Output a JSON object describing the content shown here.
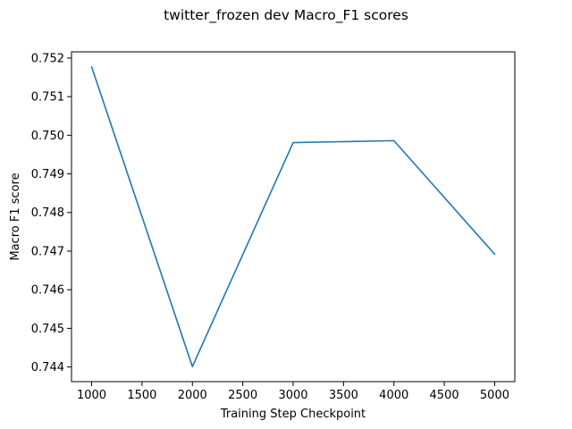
{
  "chart_data": {
    "type": "line",
    "title": "twitter_frozen dev Macro_F1 scores",
    "xlabel": "Training Step Checkpoint",
    "ylabel": "Macro F1 score",
    "x": [
      1000,
      2000,
      3000,
      4000,
      5000
    ],
    "series": [
      {
        "values": [
          0.75177,
          0.74401,
          0.74981,
          0.74986,
          0.74692
        ]
      }
    ],
    "xticks": [
      1000,
      1500,
      2000,
      2500,
      3000,
      3500,
      4000,
      4500,
      5000
    ],
    "xtick_labels": [
      "1000",
      "1500",
      "2000",
      "2500",
      "3000",
      "3500",
      "4000",
      "4500",
      "5000"
    ],
    "yticks": [
      0.744,
      0.745,
      0.746,
      0.747,
      0.748,
      0.749,
      0.75,
      0.751,
      0.752
    ],
    "ytick_labels": [
      "0.744",
      "0.745",
      "0.746",
      "0.747",
      "0.748",
      "0.749",
      "0.750",
      "0.751",
      "0.752"
    ],
    "xlim": [
      800,
      5200
    ],
    "ylim": [
      0.74362,
      0.75216
    ],
    "grid": false,
    "line_color": "#1f77b4"
  }
}
